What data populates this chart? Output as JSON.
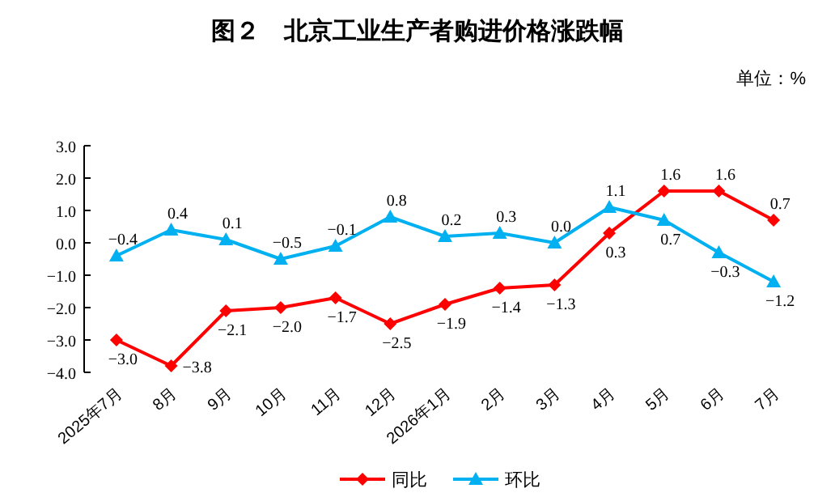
{
  "chart_data": {
    "type": "line",
    "title": "图２　北京工业生产者购进价格涨跌幅",
    "annotations": [
      "单位：%"
    ],
    "categories": [
      "2025年7月",
      "8月",
      "9月",
      "10月",
      "11月",
      "12月",
      "2026年1月",
      "2月",
      "3月",
      "4月",
      "5月",
      "6月",
      "7月"
    ],
    "series": [
      {
        "name": "同比",
        "color": "#ff0000",
        "marker": "diamond",
        "values": [
          -3.0,
          -3.8,
          -2.1,
          -2.0,
          -1.7,
          -2.5,
          -1.9,
          -1.4,
          -1.3,
          0.3,
          1.6,
          1.6,
          0.7
        ],
        "value_labels": [
          "−3.0",
          "−3.8",
          "−2.1",
          "−2.0",
          "−1.7",
          "−2.5",
          "−1.9",
          "−1.4",
          "−1.3",
          "0.3",
          "1.6",
          "1.6",
          "0.7"
        ]
      },
      {
        "name": "环比",
        "color": "#00b0f0",
        "marker": "triangle",
        "values": [
          -0.4,
          0.4,
          0.1,
          -0.5,
          -0.1,
          0.8,
          0.2,
          0.3,
          0.0,
          1.1,
          0.7,
          -0.3,
          -1.2
        ],
        "value_labels": [
          "−0.4",
          "0.4",
          "0.1",
          "−0.5",
          "−0.1",
          "0.8",
          "0.2",
          "0.3",
          "0.0",
          "1.1",
          "0.7",
          "−0.3",
          "−1.2"
        ]
      }
    ],
    "ylim": [
      -4,
      3
    ],
    "yticks": [
      {
        "value": 3,
        "label": "3.0"
      },
      {
        "value": 2,
        "label": "2.0"
      },
      {
        "value": 1,
        "label": "1.0"
      },
      {
        "value": 0,
        "label": "0.0"
      },
      {
        "value": -1,
        "label": "−1.0"
      },
      {
        "value": -2,
        "label": "−2.0"
      },
      {
        "value": -3,
        "label": "−3.0"
      },
      {
        "value": -4,
        "label": "−4.0"
      }
    ],
    "legend": "bottom",
    "grid": false,
    "line_style": "solid"
  }
}
